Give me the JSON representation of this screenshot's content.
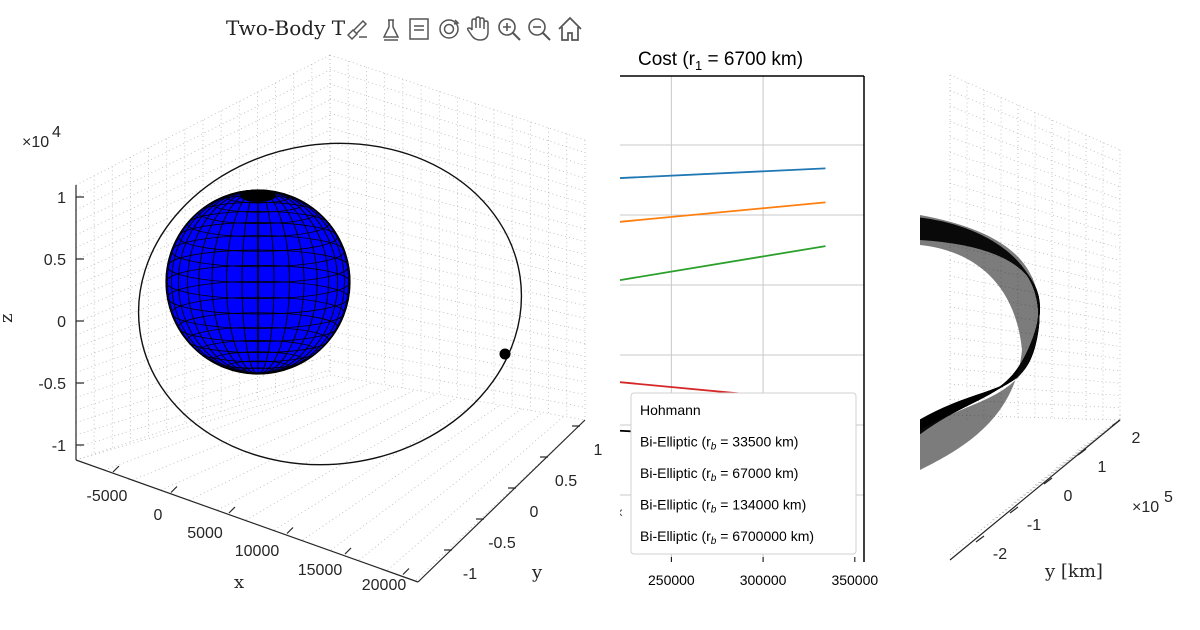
{
  "left_panel": {
    "title": "Two-Body T",
    "toolbar": [
      "brush-icon",
      "datacursor-icon",
      "legend-icon",
      "rotate-icon",
      "pan-icon",
      "zoom-in-icon",
      "zoom-out-icon",
      "home-icon"
    ],
    "exponent_label": "×10",
    "exponent_power": "4",
    "z_axis_label": "z",
    "x_axis_label": "x",
    "y_axis_label": "y",
    "sphere_color": "#0000ff",
    "chart_data": {
      "type": "3d-orbit",
      "z_ticks": [
        "1",
        "0.5",
        "0",
        "-0.5",
        "-1"
      ],
      "x_ticks": [
        "-5000",
        "0",
        "5000",
        "10000",
        "15000",
        "20000"
      ],
      "y_ticks": [
        "1",
        "0.5",
        "0",
        "-0.5",
        "-1"
      ],
      "grid": true
    }
  },
  "middle_panel": {
    "title_prefix": "Cost (r",
    "title_sub": "1",
    "title_suffix": " = 6700 km)",
    "left_cut_label": "×",
    "chart_data": {
      "type": "line",
      "x_ticks": [
        "250000",
        "300000",
        "350000"
      ],
      "xlim": [
        222000,
        355000
      ],
      "grid": true,
      "legend_position": "bottom-right",
      "series": [
        {
          "name": "Hohmann",
          "color": "#000000",
          "x": [
            222000,
            334000
          ],
          "y": [
            0.287,
            0.285
          ]
        },
        {
          "name": "Bi-Elliptic (rb = 33500 km)",
          "color": "#d62728",
          "x": [
            222000,
            334000
          ],
          "y": [
            0.297,
            0.293
          ]
        },
        {
          "name": "Bi-Elliptic (rb = 67000 km)",
          "color": "#2ca02c",
          "x": [
            222000,
            334000
          ],
          "y": [
            0.318,
            0.325
          ]
        },
        {
          "name": "Bi-Elliptic (rb = 134000 km)",
          "color": "#ff7f0e",
          "x": [
            222000,
            334000
          ],
          "y": [
            0.33,
            0.334
          ]
        },
        {
          "name": "Bi-Elliptic (rb = 6700000 km)",
          "color": "#1f77b4",
          "x": [
            222000,
            334000
          ],
          "y": [
            0.339,
            0.341
          ]
        }
      ],
      "legend_entries": [
        {
          "prefix": "Hohmann",
          "sub": "",
          "suffix": ""
        },
        {
          "prefix": "Bi-Elliptic (r",
          "sub": "b",
          "suffix": " = 33500 km)"
        },
        {
          "prefix": "Bi-Elliptic (r",
          "sub": "b",
          "suffix": " = 67000 km)"
        },
        {
          "prefix": "Bi-Elliptic (r",
          "sub": "b",
          "suffix": " = 134000 km)"
        },
        {
          "prefix": "Bi-Elliptic (r",
          "sub": "b",
          "suffix": " = 6700000 km)"
        }
      ]
    }
  },
  "right_panel": {
    "y_axis_label": "y [km]",
    "exponent_label": "×10",
    "exponent_power": "5",
    "chart_data": {
      "type": "3d-orbit",
      "y_ticks": [
        "2",
        "1",
        "0",
        "-1",
        "-2"
      ],
      "grid": true
    }
  }
}
